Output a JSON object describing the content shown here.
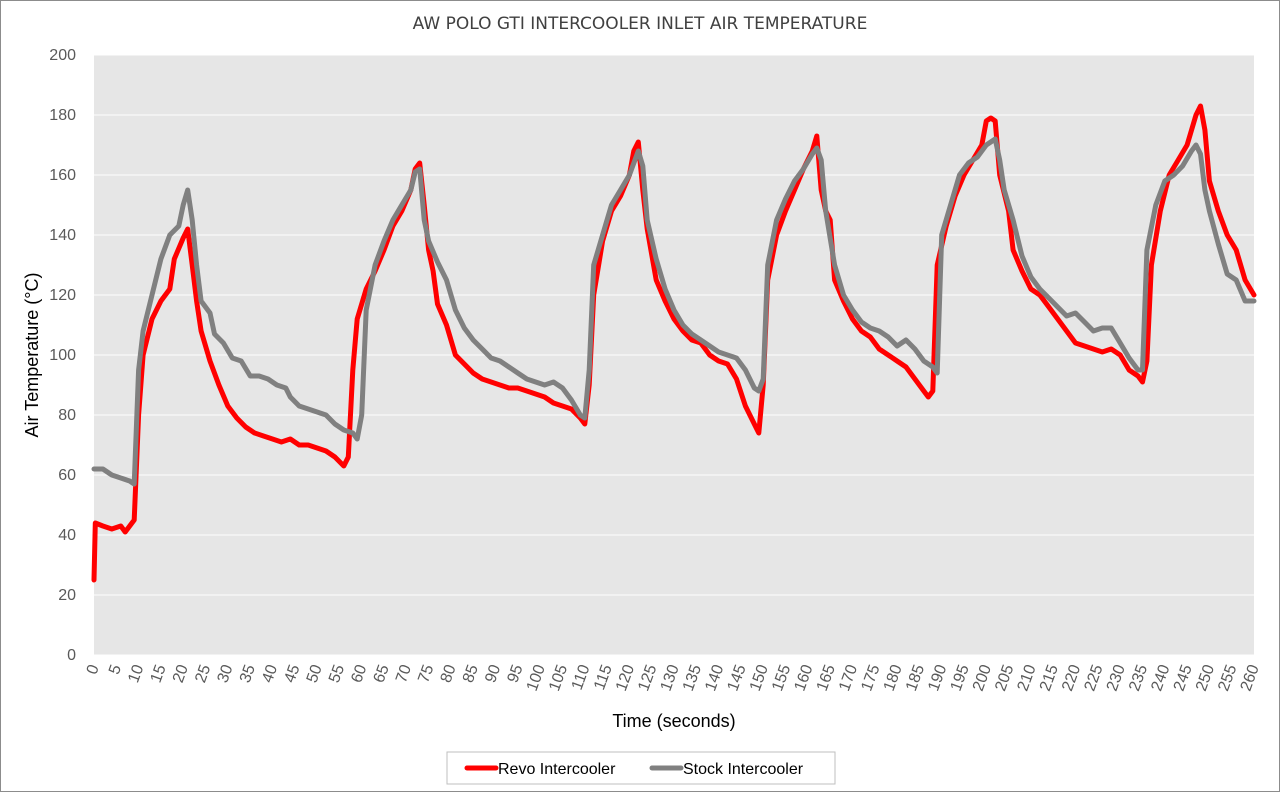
{
  "chart_data": {
    "type": "line",
    "title": "AW POLO GTI INTERCOOLER INLET AIR TEMPERATURE",
    "xlabel": "Time (seconds)",
    "ylabel": "Air Temperature (°C)",
    "xlim": [
      0,
      260
    ],
    "ylim": [
      0,
      200
    ],
    "x_ticks": [
      0,
      5,
      10,
      15,
      20,
      25,
      30,
      35,
      40,
      45,
      50,
      55,
      60,
      65,
      70,
      75,
      80,
      85,
      90,
      95,
      100,
      105,
      110,
      115,
      120,
      125,
      130,
      135,
      140,
      145,
      150,
      155,
      160,
      165,
      170,
      175,
      180,
      185,
      190,
      195,
      200,
      205,
      210,
      215,
      220,
      225,
      230,
      235,
      240,
      245,
      250,
      255,
      260
    ],
    "y_ticks": [
      0,
      20,
      40,
      60,
      80,
      100,
      120,
      140,
      160,
      180,
      200
    ],
    "grid": "horizontal",
    "legend_position": "bottom",
    "plot_background": "#e6e6e6",
    "series": [
      {
        "name": "Revo Intercooler",
        "color": "#ff0000",
        "points": [
          [
            0,
            25
          ],
          [
            0.3,
            44
          ],
          [
            2,
            43
          ],
          [
            4,
            42
          ],
          [
            6,
            43
          ],
          [
            7,
            41
          ],
          [
            8,
            43
          ],
          [
            9,
            45
          ],
          [
            10,
            80
          ],
          [
            11,
            100
          ],
          [
            13,
            112
          ],
          [
            15,
            118
          ],
          [
            17,
            122
          ],
          [
            18,
            132
          ],
          [
            20,
            139
          ],
          [
            21,
            142
          ],
          [
            22,
            130
          ],
          [
            23,
            118
          ],
          [
            24,
            108
          ],
          [
            26,
            98
          ],
          [
            28,
            90
          ],
          [
            30,
            83
          ],
          [
            32,
            79
          ],
          [
            34,
            76
          ],
          [
            36,
            74
          ],
          [
            38,
            73
          ],
          [
            40,
            72
          ],
          [
            42,
            71
          ],
          [
            44,
            72
          ],
          [
            46,
            70
          ],
          [
            48,
            70
          ],
          [
            50,
            69
          ],
          [
            52,
            68
          ],
          [
            54,
            66
          ],
          [
            56,
            63
          ],
          [
            57,
            66
          ],
          [
            58,
            95
          ],
          [
            59,
            112
          ],
          [
            61,
            122
          ],
          [
            63,
            128
          ],
          [
            65,
            135
          ],
          [
            67,
            143
          ],
          [
            69,
            148
          ],
          [
            71,
            155
          ],
          [
            72,
            162
          ],
          [
            73,
            164
          ],
          [
            74,
            150
          ],
          [
            75,
            135
          ],
          [
            76,
            128
          ],
          [
            77,
            117
          ],
          [
            79,
            110
          ],
          [
            81,
            100
          ],
          [
            83,
            97
          ],
          [
            85,
            94
          ],
          [
            87,
            92
          ],
          [
            89,
            91
          ],
          [
            91,
            90
          ],
          [
            93,
            89
          ],
          [
            95,
            89
          ],
          [
            97,
            88
          ],
          [
            99,
            87
          ],
          [
            101,
            86
          ],
          [
            103,
            84
          ],
          [
            105,
            83
          ],
          [
            107,
            82
          ],
          [
            109,
            79
          ],
          [
            110,
            77
          ],
          [
            111,
            90
          ],
          [
            112,
            120
          ],
          [
            114,
            138
          ],
          [
            116,
            148
          ],
          [
            118,
            153
          ],
          [
            120,
            160
          ],
          [
            121,
            168
          ],
          [
            122,
            171
          ],
          [
            123,
            155
          ],
          [
            124,
            142
          ],
          [
            126,
            125
          ],
          [
            128,
            118
          ],
          [
            130,
            112
          ],
          [
            132,
            108
          ],
          [
            134,
            105
          ],
          [
            136,
            104
          ],
          [
            138,
            100
          ],
          [
            140,
            98
          ],
          [
            142,
            97
          ],
          [
            144,
            92
          ],
          [
            146,
            83
          ],
          [
            148,
            77
          ],
          [
            149,
            74
          ],
          [
            150,
            90
          ],
          [
            151,
            125
          ],
          [
            153,
            140
          ],
          [
            155,
            148
          ],
          [
            157,
            155
          ],
          [
            159,
            162
          ],
          [
            161,
            168
          ],
          [
            162,
            173
          ],
          [
            163,
            155
          ],
          [
            164,
            148
          ],
          [
            165,
            145
          ],
          [
            166,
            125
          ],
          [
            168,
            118
          ],
          [
            170,
            112
          ],
          [
            172,
            108
          ],
          [
            174,
            106
          ],
          [
            176,
            102
          ],
          [
            178,
            100
          ],
          [
            180,
            98
          ],
          [
            182,
            96
          ],
          [
            184,
            92
          ],
          [
            186,
            88
          ],
          [
            187,
            86
          ],
          [
            188,
            88
          ],
          [
            189,
            130
          ],
          [
            191,
            143
          ],
          [
            193,
            153
          ],
          [
            195,
            160
          ],
          [
            197,
            165
          ],
          [
            199,
            170
          ],
          [
            200,
            178
          ],
          [
            201,
            179
          ],
          [
            202,
            178
          ],
          [
            203,
            160
          ],
          [
            205,
            148
          ],
          [
            206,
            135
          ],
          [
            208,
            128
          ],
          [
            210,
            122
          ],
          [
            212,
            120
          ],
          [
            214,
            116
          ],
          [
            216,
            112
          ],
          [
            218,
            108
          ],
          [
            220,
            104
          ],
          [
            222,
            103
          ],
          [
            224,
            102
          ],
          [
            226,
            101
          ],
          [
            228,
            102
          ],
          [
            230,
            100
          ],
          [
            232,
            95
          ],
          [
            234,
            93
          ],
          [
            235,
            91
          ],
          [
            236,
            98
          ],
          [
            237,
            130
          ],
          [
            239,
            148
          ],
          [
            241,
            160
          ],
          [
            243,
            165
          ],
          [
            245,
            170
          ],
          [
            247,
            180
          ],
          [
            248,
            183
          ],
          [
            249,
            175
          ],
          [
            250,
            158
          ],
          [
            252,
            148
          ],
          [
            254,
            140
          ],
          [
            256,
            135
          ],
          [
            258,
            125
          ],
          [
            260,
            120
          ]
        ]
      },
      {
        "name": "Stock Intercooler",
        "color": "#808080",
        "points": [
          [
            0,
            62
          ],
          [
            2,
            62
          ],
          [
            4,
            60
          ],
          [
            6,
            59
          ],
          [
            8,
            58
          ],
          [
            9,
            57
          ],
          [
            10,
            95
          ],
          [
            11,
            108
          ],
          [
            13,
            120
          ],
          [
            15,
            132
          ],
          [
            17,
            140
          ],
          [
            19,
            143
          ],
          [
            20,
            150
          ],
          [
            21,
            155
          ],
          [
            22,
            145
          ],
          [
            23,
            130
          ],
          [
            24,
            118
          ],
          [
            26,
            114
          ],
          [
            27,
            107
          ],
          [
            29,
            104
          ],
          [
            31,
            99
          ],
          [
            33,
            98
          ],
          [
            35,
            93
          ],
          [
            37,
            93
          ],
          [
            39,
            92
          ],
          [
            41,
            90
          ],
          [
            43,
            89
          ],
          [
            44,
            86
          ],
          [
            46,
            83
          ],
          [
            48,
            82
          ],
          [
            50,
            81
          ],
          [
            52,
            80
          ],
          [
            54,
            77
          ],
          [
            56,
            75
          ],
          [
            58,
            74
          ],
          [
            59,
            72
          ],
          [
            60,
            80
          ],
          [
            61,
            115
          ],
          [
            63,
            130
          ],
          [
            65,
            138
          ],
          [
            67,
            145
          ],
          [
            69,
            150
          ],
          [
            71,
            155
          ],
          [
            72,
            161
          ],
          [
            73,
            162
          ],
          [
            74,
            145
          ],
          [
            75,
            138
          ],
          [
            77,
            131
          ],
          [
            79,
            125
          ],
          [
            81,
            115
          ],
          [
            83,
            109
          ],
          [
            85,
            105
          ],
          [
            87,
            102
          ],
          [
            89,
            99
          ],
          [
            91,
            98
          ],
          [
            93,
            96
          ],
          [
            95,
            94
          ],
          [
            97,
            92
          ],
          [
            99,
            91
          ],
          [
            101,
            90
          ],
          [
            103,
            91
          ],
          [
            105,
            89
          ],
          [
            107,
            85
          ],
          [
            109,
            80
          ],
          [
            110,
            79
          ],
          [
            111,
            95
          ],
          [
            112,
            130
          ],
          [
            114,
            140
          ],
          [
            116,
            150
          ],
          [
            118,
            155
          ],
          [
            120,
            160
          ],
          [
            122,
            168
          ],
          [
            123,
            163
          ],
          [
            124,
            145
          ],
          [
            126,
            132
          ],
          [
            128,
            122
          ],
          [
            130,
            115
          ],
          [
            132,
            110
          ],
          [
            134,
            107
          ],
          [
            136,
            105
          ],
          [
            138,
            103
          ],
          [
            140,
            101
          ],
          [
            142,
            100
          ],
          [
            144,
            99
          ],
          [
            146,
            95
          ],
          [
            148,
            89
          ],
          [
            149,
            88
          ],
          [
            150,
            92
          ],
          [
            151,
            130
          ],
          [
            153,
            145
          ],
          [
            155,
            152
          ],
          [
            157,
            158
          ],
          [
            159,
            162
          ],
          [
            161,
            167
          ],
          [
            162,
            169
          ],
          [
            163,
            165
          ],
          [
            164,
            148
          ],
          [
            166,
            130
          ],
          [
            168,
            120
          ],
          [
            170,
            115
          ],
          [
            172,
            111
          ],
          [
            174,
            109
          ],
          [
            176,
            108
          ],
          [
            178,
            106
          ],
          [
            180,
            103
          ],
          [
            182,
            105
          ],
          [
            184,
            102
          ],
          [
            186,
            98
          ],
          [
            188,
            96
          ],
          [
            189,
            94
          ],
          [
            190,
            140
          ],
          [
            192,
            150
          ],
          [
            194,
            160
          ],
          [
            196,
            164
          ],
          [
            198,
            166
          ],
          [
            200,
            170
          ],
          [
            202,
            172
          ],
          [
            203,
            165
          ],
          [
            204,
            155
          ],
          [
            206,
            145
          ],
          [
            208,
            133
          ],
          [
            210,
            126
          ],
          [
            212,
            122
          ],
          [
            214,
            119
          ],
          [
            216,
            116
          ],
          [
            218,
            113
          ],
          [
            220,
            114
          ],
          [
            222,
            111
          ],
          [
            224,
            108
          ],
          [
            226,
            109
          ],
          [
            228,
            109
          ],
          [
            230,
            104
          ],
          [
            232,
            99
          ],
          [
            234,
            95
          ],
          [
            235,
            95
          ],
          [
            236,
            135
          ],
          [
            238,
            150
          ],
          [
            240,
            158
          ],
          [
            242,
            160
          ],
          [
            244,
            163
          ],
          [
            246,
            168
          ],
          [
            247,
            170
          ],
          [
            248,
            167
          ],
          [
            249,
            155
          ],
          [
            250,
            148
          ],
          [
            252,
            137
          ],
          [
            254,
            127
          ],
          [
            256,
            125
          ],
          [
            258,
            118
          ],
          [
            260,
            118
          ]
        ]
      }
    ]
  }
}
